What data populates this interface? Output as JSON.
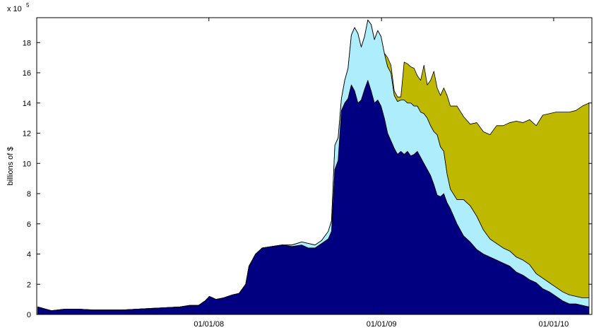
{
  "chart_data": {
    "type": "stacked_area",
    "y_label": "billions of $",
    "y_exponent_base": "x 10",
    "y_exponent": "5",
    "x": [
      "2007-01-03",
      "2007-02-01",
      "2007-03-01",
      "2007-04-01",
      "2007-05-01",
      "2007-06-01",
      "2007-07-01",
      "2007-08-01",
      "2007-09-01",
      "2007-10-01",
      "2007-11-01",
      "2007-11-21",
      "2007-12-10",
      "2007-12-24",
      "2008-01-02",
      "2008-01-16",
      "2008-02-01",
      "2008-02-20",
      "2008-03-05",
      "2008-03-19",
      "2008-03-26",
      "2008-04-09",
      "2008-04-23",
      "2008-05-14",
      "2008-06-04",
      "2008-06-25",
      "2008-07-16",
      "2008-07-30",
      "2008-08-13",
      "2008-08-27",
      "2008-09-10",
      "2008-09-17",
      "2008-09-24",
      "2008-10-01",
      "2008-10-08",
      "2008-10-15",
      "2008-10-22",
      "2008-10-29",
      "2008-11-05",
      "2008-11-12",
      "2008-11-19",
      "2008-11-26",
      "2008-12-03",
      "2008-12-10",
      "2008-12-17",
      "2008-12-24",
      "2008-12-31",
      "2009-01-07",
      "2009-01-14",
      "2009-01-21",
      "2009-01-28",
      "2009-02-04",
      "2009-02-11",
      "2009-02-18",
      "2009-02-25",
      "2009-03-04",
      "2009-03-11",
      "2009-03-18",
      "2009-03-25",
      "2009-04-01",
      "2009-04-08",
      "2009-04-15",
      "2009-04-22",
      "2009-04-29",
      "2009-05-06",
      "2009-05-13",
      "2009-05-20",
      "2009-05-27",
      "2009-06-10",
      "2009-06-24",
      "2009-07-08",
      "2009-07-22",
      "2009-08-05",
      "2009-08-19",
      "2009-09-02",
      "2009-09-16",
      "2009-09-30",
      "2009-10-14",
      "2009-10-28",
      "2009-11-11",
      "2009-11-25",
      "2009-12-09",
      "2009-12-23",
      "2010-01-06",
      "2010-01-20",
      "2010-02-03",
      "2010-02-17",
      "2010-03-03",
      "2010-03-17"
    ],
    "series": [
      {
        "color": "#000080",
        "values": [
          0.5,
          0.25,
          0.35,
          0.35,
          0.3,
          0.3,
          0.3,
          0.35,
          0.4,
          0.45,
          0.5,
          0.6,
          0.6,
          0.9,
          1.2,
          1.0,
          1.1,
          1.3,
          1.4,
          2.0,
          3.2,
          4.0,
          4.4,
          4.5,
          4.6,
          4.5,
          4.6,
          4.4,
          4.4,
          4.7,
          5.0,
          5.5,
          9.6,
          10.2,
          13.5,
          14.0,
          14.3,
          15.2,
          14.8,
          14.0,
          14.2,
          14.9,
          15.5,
          14.8,
          14.0,
          14.2,
          13.8,
          13.0,
          12.0,
          11.5,
          11.0,
          10.6,
          10.8,
          10.6,
          10.8,
          10.5,
          10.6,
          10.8,
          10.4,
          10.0,
          9.6,
          9.2,
          8.6,
          7.9,
          7.8,
          8.0,
          7.4,
          7.0,
          6.0,
          5.2,
          4.8,
          4.3,
          4.0,
          3.8,
          3.6,
          3.4,
          3.2,
          2.8,
          2.6,
          2.3,
          2.1,
          1.7,
          1.5,
          1.2,
          0.9,
          0.7,
          0.7,
          0.6,
          0.5
        ]
      },
      {
        "color": "#aeeefc",
        "values": [
          0,
          0,
          0,
          0,
          0,
          0,
          0,
          0,
          0,
          0,
          0,
          0,
          0,
          0,
          0,
          0,
          0,
          0,
          0,
          0,
          0,
          0,
          0,
          0,
          0,
          0.1,
          0.2,
          0.3,
          0.2,
          0.2,
          0.5,
          0.7,
          1.6,
          1.5,
          0.8,
          1.5,
          2.0,
          3.3,
          4.2,
          4.6,
          3.5,
          3.5,
          4.0,
          4.4,
          4.2,
          4.6,
          4.6,
          4.3,
          4.4,
          4.5,
          3.5,
          3.5,
          3.4,
          3.6,
          3.2,
          3.5,
          3.2,
          3.0,
          3.0,
          3.3,
          3.4,
          3.3,
          3.5,
          4.0,
          3.3,
          2.8,
          1.9,
          1.3,
          1.6,
          2.4,
          2.4,
          2.2,
          1.6,
          1.2,
          1.1,
          1.0,
          1.0,
          1.0,
          1.0,
          1.0,
          0.6,
          0.7,
          0.6,
          0.6,
          0.6,
          0.6,
          0.5,
          0.5,
          0.6
        ]
      },
      {
        "color": "#bfb800",
        "values": [
          0,
          0,
          0,
          0,
          0,
          0,
          0,
          0,
          0,
          0,
          0,
          0,
          0,
          0,
          0,
          0,
          0,
          0,
          0,
          0,
          0,
          0,
          0,
          0,
          0,
          0,
          0,
          0,
          0,
          0,
          0,
          0,
          0,
          0,
          0,
          0,
          0,
          0,
          0,
          0,
          0,
          0,
          0,
          0,
          0,
          0,
          0,
          0,
          0.6,
          0.5,
          0.3,
          0.3,
          0.2,
          2.5,
          2.6,
          2.4,
          2.5,
          2.0,
          2.1,
          3.2,
          2.2,
          3.0,
          4.0,
          3.1,
          3.4,
          4.2,
          5.2,
          5.5,
          6.2,
          5.5,
          5.4,
          6.2,
          6.5,
          6.9,
          7.8,
          8.1,
          8.5,
          9.0,
          9.1,
          9.6,
          9.8,
          10.8,
          11.2,
          11.6,
          11.9,
          12.1,
          12.3,
          12.7,
          12.9
        ]
      }
    ],
    "xlim": [
      "2007-01-01",
      "2010-03-23"
    ],
    "xticks": [
      {
        "value": "2008-01-01",
        "label": "01/01/08"
      },
      {
        "value": "2009-01-01",
        "label": "01/01/09"
      },
      {
        "value": "2010-01-01",
        "label": "01/01/10"
      }
    ],
    "ylim": [
      0,
      19.65
    ],
    "yticks": [
      0,
      2,
      4,
      6,
      8,
      10,
      12,
      14,
      16,
      18
    ]
  }
}
